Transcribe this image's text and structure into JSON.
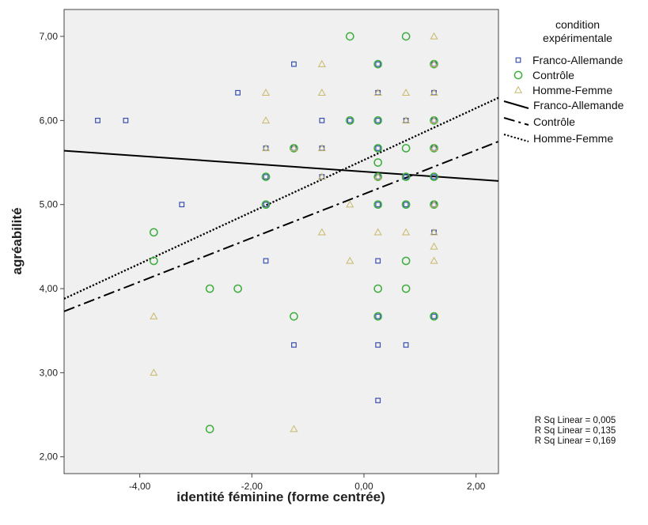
{
  "chart_data": {
    "type": "scatter",
    "xlabel": "identité féminine (forme centrée)",
    "ylabel": "agréabilité",
    "xlim": [
      -5.35,
      2.4
    ],
    "ylim": [
      1.8,
      7.32
    ],
    "xticks": [
      -4,
      -2,
      0,
      2
    ],
    "xtick_labels": [
      "-4,00",
      "-2,00",
      "0,00",
      "2,00"
    ],
    "yticks": [
      2,
      3,
      4,
      5,
      6,
      7
    ],
    "ytick_labels": [
      "2,00",
      "3,00",
      "4,00",
      "5,00",
      "6,00",
      "7,00"
    ],
    "grid": false,
    "legend": {
      "title_lines": [
        "condition",
        "expérimentale"
      ],
      "placement": "right",
      "marker_entries": [
        {
          "label": "Franco-Allemande",
          "marker": "square",
          "color": "#3a4fb0"
        },
        {
          "label": "Contrôle",
          "marker": "circle",
          "color": "#3cae3c"
        },
        {
          "label": "Homme-Femme",
          "marker": "triangle",
          "color": "#c8b86a"
        }
      ],
      "line_entries": [
        {
          "label": "Franco-Allemande",
          "dash": "solid"
        },
        {
          "label": "Contrôle",
          "dash": "dashdot"
        },
        {
          "label": "Homme-Femme",
          "dash": "dotted"
        }
      ]
    },
    "r_squared_labels": [
      "R Sq Linear = 0,005",
      "R Sq Linear = 0,135",
      "R Sq Linear = 0,169"
    ],
    "series": [
      {
        "name": "Franco-Allemande",
        "marker": "square",
        "color": "#3a4fb0",
        "points": [
          [
            -4.75,
            6.0
          ],
          [
            -4.25,
            6.0
          ],
          [
            -3.25,
            5.0
          ],
          [
            -2.25,
            6.33
          ],
          [
            -1.75,
            5.67
          ],
          [
            -1.75,
            5.33
          ],
          [
            -1.75,
            5.0
          ],
          [
            -1.75,
            4.33
          ],
          [
            -1.25,
            6.67
          ],
          [
            -1.25,
            5.67
          ],
          [
            -1.25,
            3.33
          ],
          [
            -0.75,
            6.0
          ],
          [
            -0.75,
            5.67
          ],
          [
            -0.75,
            5.33
          ],
          [
            -0.25,
            6.0
          ],
          [
            0.25,
            6.67
          ],
          [
            0.25,
            6.33
          ],
          [
            0.25,
            6.0
          ],
          [
            0.25,
            5.67
          ],
          [
            0.25,
            5.33
          ],
          [
            0.25,
            5.0
          ],
          [
            0.25,
            4.33
          ],
          [
            0.25,
            3.67
          ],
          [
            0.25,
            3.33
          ],
          [
            0.25,
            2.67
          ],
          [
            0.75,
            6.0
          ],
          [
            0.75,
            5.33
          ],
          [
            0.75,
            5.0
          ],
          [
            0.75,
            3.33
          ],
          [
            1.25,
            6.67
          ],
          [
            1.25,
            6.33
          ],
          [
            1.25,
            6.0
          ],
          [
            1.25,
            5.67
          ],
          [
            1.25,
            5.33
          ],
          [
            1.25,
            5.0
          ],
          [
            1.25,
            4.67
          ],
          [
            1.25,
            3.67
          ]
        ]
      },
      {
        "name": "Contrôle",
        "marker": "circle",
        "color": "#3cae3c",
        "points": [
          [
            -3.75,
            4.67
          ],
          [
            -3.75,
            4.33
          ],
          [
            -2.75,
            4.0
          ],
          [
            -2.75,
            2.33
          ],
          [
            -2.25,
            4.0
          ],
          [
            -1.75,
            5.33
          ],
          [
            -1.75,
            5.0
          ],
          [
            -1.25,
            5.67
          ],
          [
            -1.25,
            3.67
          ],
          [
            -0.25,
            7.0
          ],
          [
            -0.25,
            6.0
          ],
          [
            0.25,
            6.67
          ],
          [
            0.25,
            6.0
          ],
          [
            0.25,
            5.67
          ],
          [
            0.25,
            5.5
          ],
          [
            0.25,
            5.33
          ],
          [
            0.25,
            5.0
          ],
          [
            0.25,
            4.0
          ],
          [
            0.25,
            3.67
          ],
          [
            0.75,
            7.0
          ],
          [
            0.75,
            5.67
          ],
          [
            0.75,
            5.33
          ],
          [
            0.75,
            5.0
          ],
          [
            0.75,
            4.33
          ],
          [
            0.75,
            4.0
          ],
          [
            1.25,
            6.67
          ],
          [
            1.25,
            6.0
          ],
          [
            1.25,
            5.67
          ],
          [
            1.25,
            5.33
          ],
          [
            1.25,
            5.0
          ],
          [
            1.25,
            3.67
          ]
        ]
      },
      {
        "name": "Homme-Femme",
        "marker": "triangle",
        "color": "#c8b86a",
        "points": [
          [
            -3.75,
            3.67
          ],
          [
            -3.75,
            3.0
          ],
          [
            -1.75,
            6.33
          ],
          [
            -1.75,
            6.0
          ],
          [
            -1.75,
            5.67
          ],
          [
            -1.25,
            5.67
          ],
          [
            -1.25,
            2.33
          ],
          [
            -0.75,
            6.67
          ],
          [
            -0.75,
            6.33
          ],
          [
            -0.75,
            5.67
          ],
          [
            -0.75,
            5.33
          ],
          [
            -0.75,
            4.67
          ],
          [
            -0.25,
            5.0
          ],
          [
            -0.25,
            4.33
          ],
          [
            0.25,
            6.33
          ],
          [
            0.25,
            5.33
          ],
          [
            0.25,
            4.67
          ],
          [
            0.75,
            6.33
          ],
          [
            0.75,
            6.0
          ],
          [
            0.75,
            4.67
          ],
          [
            1.25,
            7.0
          ],
          [
            1.25,
            6.67
          ],
          [
            1.25,
            6.33
          ],
          [
            1.25,
            6.0
          ],
          [
            1.25,
            5.67
          ],
          [
            1.25,
            5.0
          ],
          [
            1.25,
            4.67
          ],
          [
            1.25,
            4.5
          ],
          [
            1.25,
            4.33
          ]
        ]
      }
    ],
    "fit_lines": [
      {
        "name": "Franco-Allemande",
        "dash": "solid",
        "x": [
          -5.35,
          2.4
        ],
        "y": [
          5.64,
          5.28
        ]
      },
      {
        "name": "Contrôle",
        "dash": "dashdot",
        "x": [
          -5.35,
          2.4
        ],
        "y": [
          3.73,
          5.75
        ]
      },
      {
        "name": "Homme-Femme",
        "dash": "dotted",
        "x": [
          -5.35,
          2.4
        ],
        "y": [
          3.88,
          6.27
        ]
      }
    ]
  }
}
